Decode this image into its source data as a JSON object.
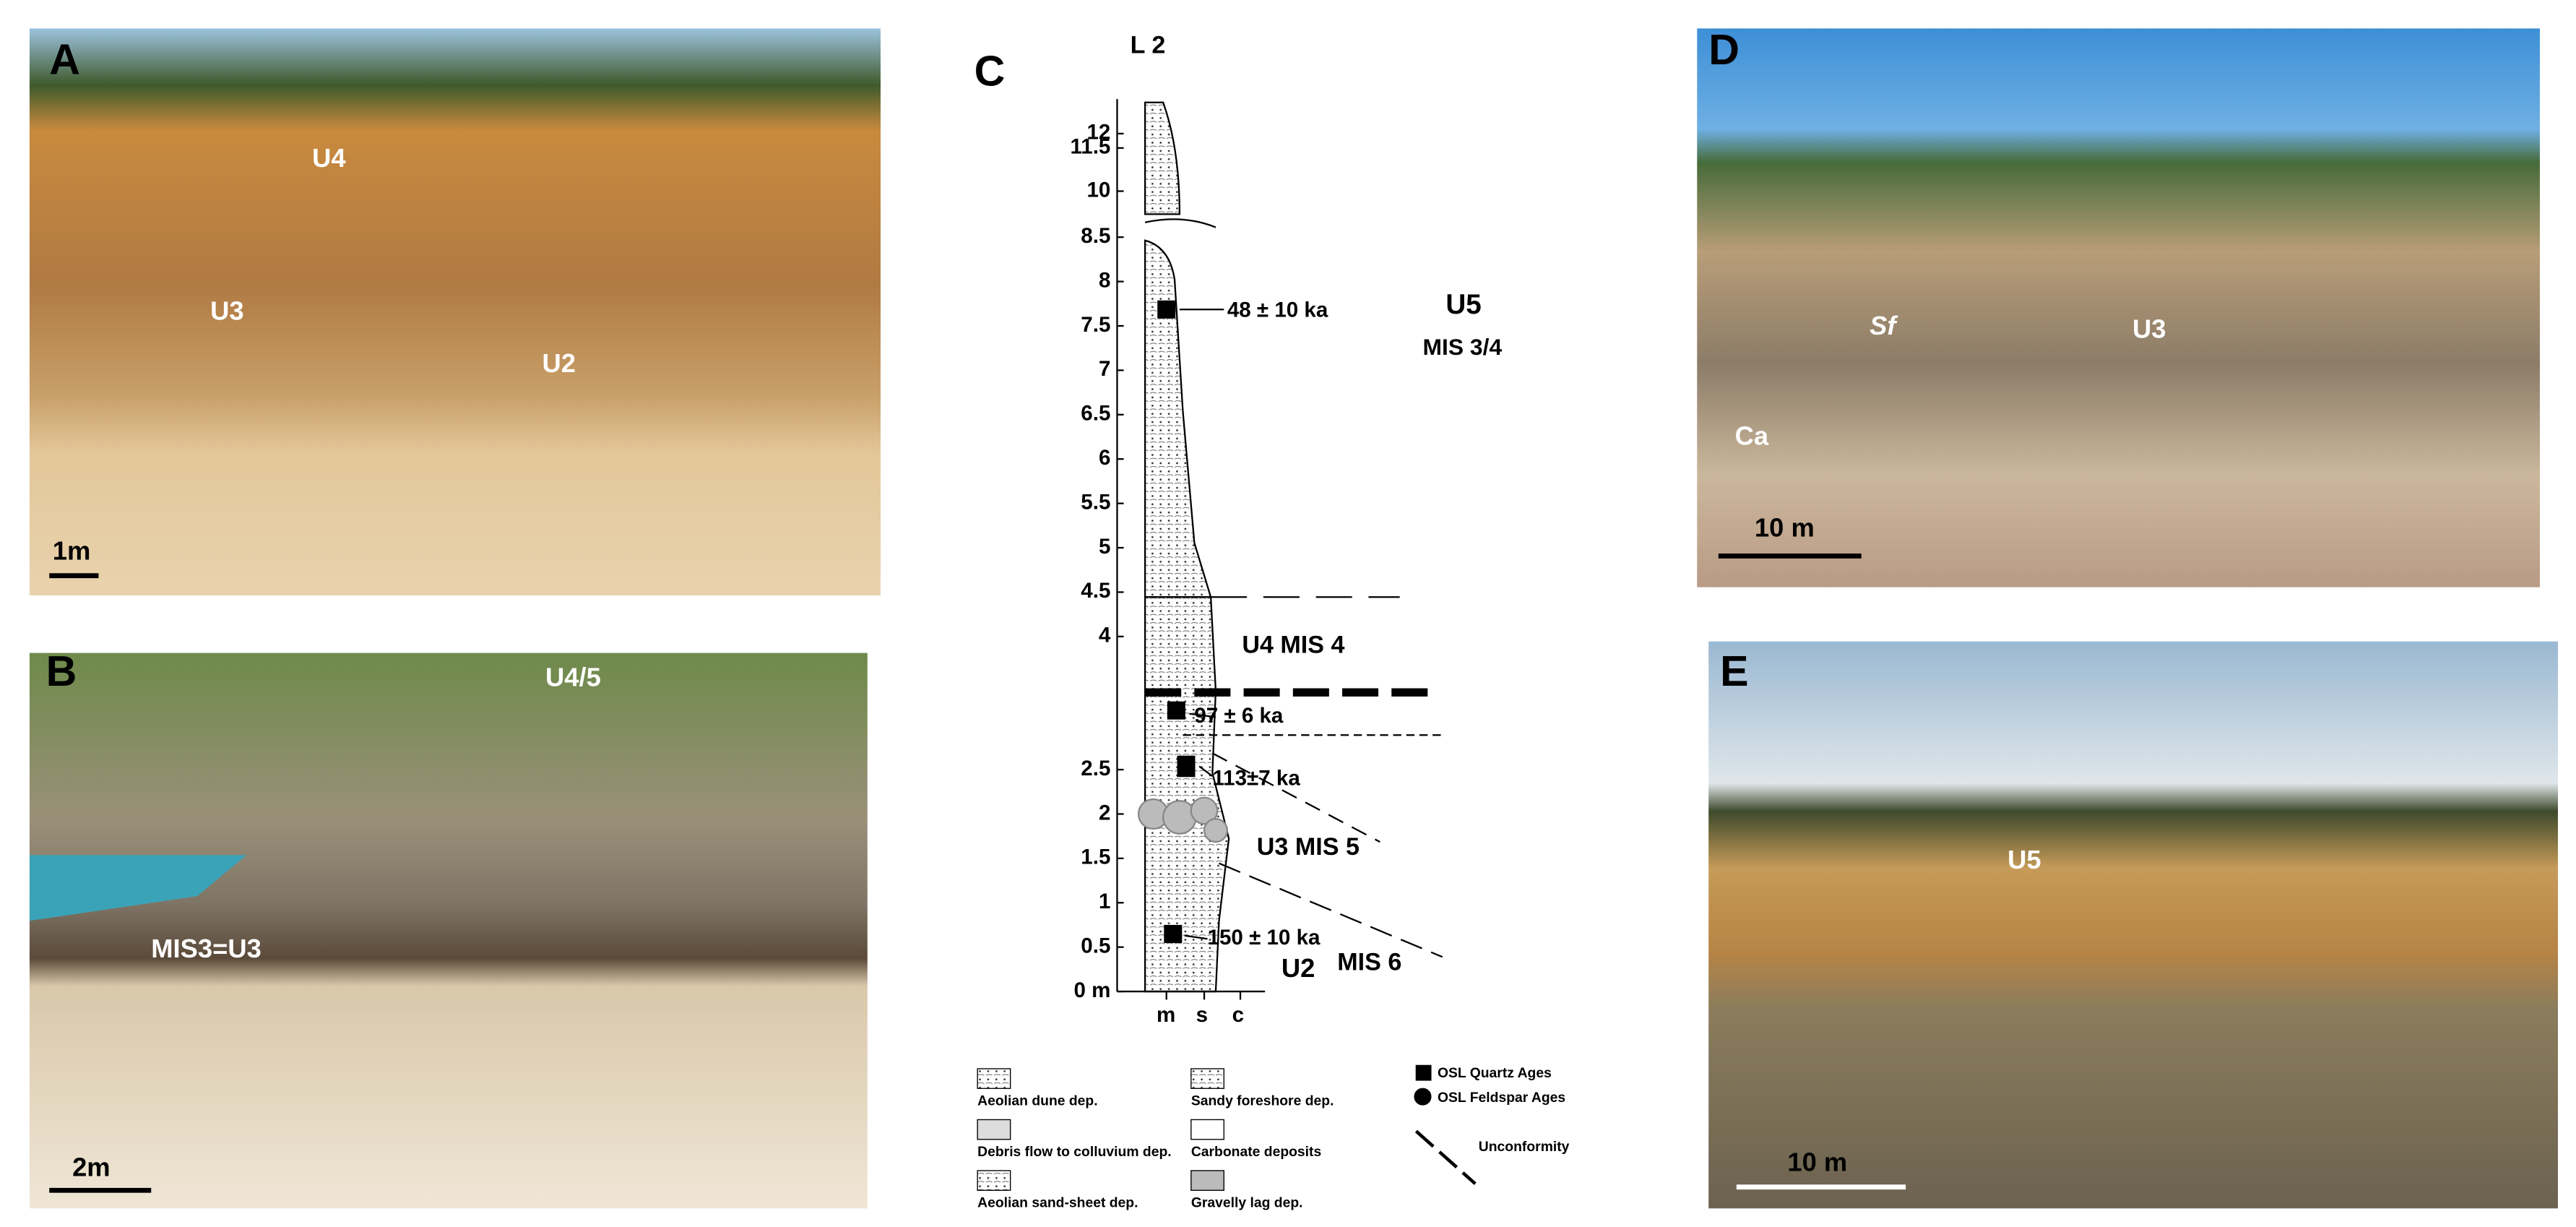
{
  "panels": {
    "A": {
      "letter": "A",
      "labels": [
        "U4",
        "U3",
        "U2"
      ],
      "scale": "1m"
    },
    "B": {
      "letter": "B",
      "labels": [
        "U4/5",
        "MIS3=U3"
      ],
      "scale": "2m"
    },
    "D": {
      "letter": "D",
      "labels": [
        "Sf",
        "U3",
        "Ca"
      ],
      "scale": "10 m"
    },
    "E": {
      "letter": "E",
      "labels": [
        "U5"
      ],
      "scale": "10 m"
    }
  },
  "log": {
    "letter": "C",
    "title": "L 2",
    "depth_ticks": [
      {
        "value": 0,
        "label": "0 m"
      },
      0.5,
      1,
      1.5,
      2,
      2.5,
      4,
      4.5,
      5,
      5.5,
      6,
      6.5,
      7,
      7.5,
      8,
      8.5,
      10,
      11.5,
      12
    ],
    "ages": [
      "48 ± 10 ka",
      "97 ± 6 ka",
      "113±7 ka",
      "150 ± 10 ka"
    ],
    "units": [
      "U5",
      "MIS 3/4",
      "U4  MIS 4",
      "U3  MIS 5",
      "U2",
      "MIS 6"
    ],
    "grain_sizes": [
      "m",
      "s",
      "c"
    ]
  },
  "legend": [
    "Aeolian dune dep.",
    "Debris flow to colluvium dep.",
    "Aeolian sand-sheet dep.",
    "Sandy foreshore dep.",
    "Carbonate deposits",
    "Gravelly lag dep.",
    "OSL Quartz Ages",
    "OSL Feldspar Ages",
    "Unconformity"
  ]
}
